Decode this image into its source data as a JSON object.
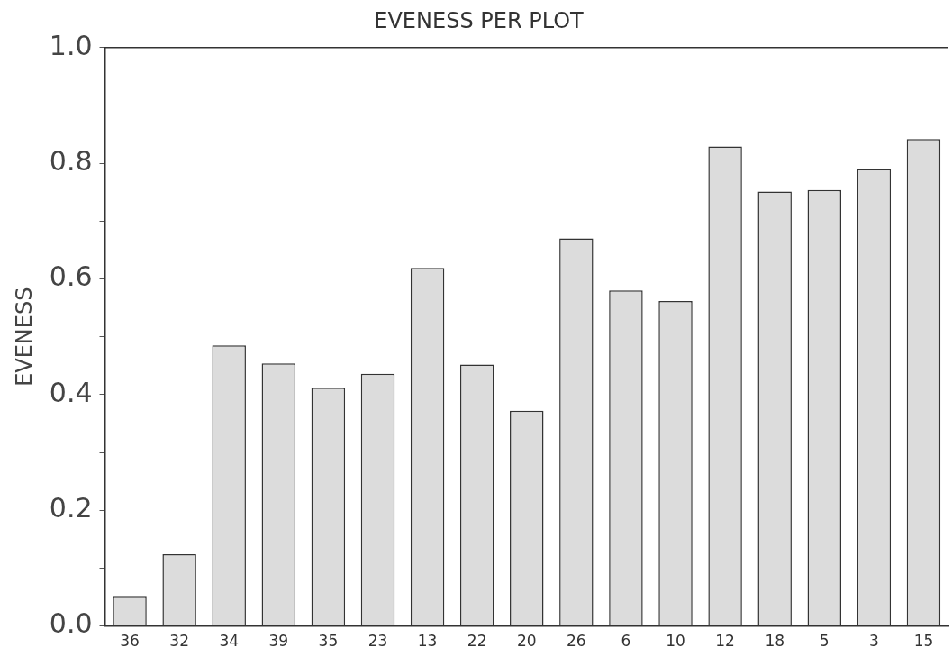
{
  "chart_data": {
    "type": "bar",
    "title": "EVENESS PER PLOT",
    "ylabel": "EVENESS",
    "categories": [
      "36",
      "32",
      "34",
      "39",
      "35",
      "23",
      "13",
      "22",
      "20",
      "26",
      "6",
      "10",
      "12",
      "18",
      "5",
      "3",
      "15"
    ],
    "values": [
      0.052,
      0.124,
      0.485,
      0.454,
      0.412,
      0.436,
      0.619,
      0.452,
      0.372,
      0.67,
      0.58,
      0.562,
      0.829,
      0.751,
      0.754,
      0.79,
      0.842
    ],
    "color": "#dcdcdc",
    "ylim": [
      0,
      1
    ],
    "yticks": [
      {
        "value": 0,
        "label": "0.0"
      },
      {
        "value": 0.1,
        "label": null
      },
      {
        "value": 0.2,
        "label": "0.2"
      },
      {
        "value": 0.3,
        "label": null
      },
      {
        "value": 0.4,
        "label": "0.4"
      },
      {
        "value": 0.5,
        "label": null
      },
      {
        "value": 0.6,
        "label": "0.6"
      },
      {
        "value": 0.7,
        "label": null
      },
      {
        "value": 0.8,
        "label": "0.8"
      },
      {
        "value": 0.9,
        "label": null
      },
      {
        "value": 1,
        "label": "1.0"
      }
    ],
    "grid": false,
    "legend": false
  }
}
